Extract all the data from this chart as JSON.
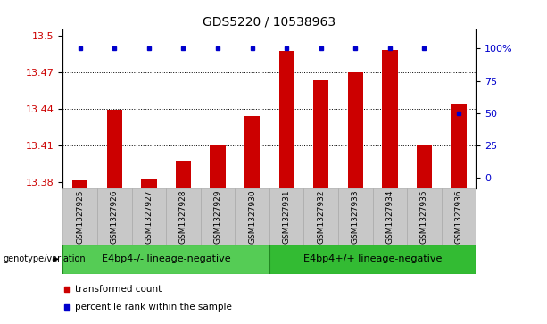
{
  "title": "GDS5220 / 10538963",
  "samples": [
    "GSM1327925",
    "GSM1327926",
    "GSM1327927",
    "GSM1327928",
    "GSM1327929",
    "GSM1327930",
    "GSM1327931",
    "GSM1327932",
    "GSM1327933",
    "GSM1327934",
    "GSM1327935",
    "GSM1327936"
  ],
  "red_values": [
    13.381,
    13.439,
    13.383,
    13.397,
    13.41,
    13.434,
    13.487,
    13.463,
    13.47,
    13.488,
    13.41,
    13.444
  ],
  "blue_values": [
    100,
    100,
    100,
    100,
    100,
    100,
    100,
    100,
    100,
    100,
    100,
    50
  ],
  "ylim_left": [
    13.375,
    13.505
  ],
  "ylim_right": [
    -8,
    115
  ],
  "yticks_left": [
    13.38,
    13.41,
    13.44,
    13.47,
    13.5
  ],
  "yticks_right": [
    0,
    25,
    50,
    75,
    100
  ],
  "ytick_labels_right": [
    "0",
    "25",
    "50",
    "75",
    "100%"
  ],
  "groups": [
    {
      "label": "E4bp4-/- lineage-negative",
      "start": 0,
      "end": 6,
      "color": "#55cc55"
    },
    {
      "label": "E4bp4+/+ lineage-negative",
      "start": 6,
      "end": 12,
      "color": "#33bb33"
    }
  ],
  "group_label": "genotype/variation",
  "legend_red": "transformed count",
  "legend_blue": "percentile rank within the sample",
  "bar_color": "#cc0000",
  "dot_color": "#0000cc",
  "grid_color": "#000000",
  "bg_color": "#ffffff",
  "sample_box_color": "#c8c8c8",
  "sample_box_edge": "#aaaaaa",
  "title_fontsize": 10,
  "tick_fontsize": 8,
  "sample_fontsize": 6.5,
  "group_fontsize": 8,
  "legend_fontsize": 7.5
}
